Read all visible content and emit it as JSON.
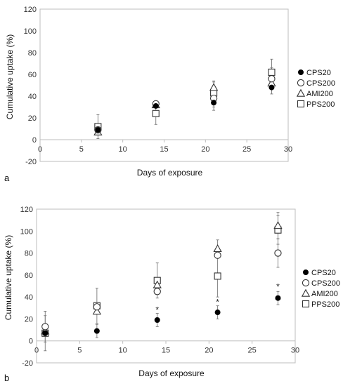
{
  "chart_data": [
    {
      "type": "scatter",
      "panel_label": "a",
      "xlabel": "Days of exposure",
      "ylabel": "Cumulative uptake (%)",
      "xlim": [
        0,
        30
      ],
      "ylim": [
        -20,
        120
      ],
      "xticks": [
        0,
        5,
        10,
        15,
        20,
        25,
        30
      ],
      "yticks": [
        -20,
        0,
        20,
        40,
        60,
        80,
        100,
        120
      ],
      "grid": false,
      "legend_position": "right",
      "series": [
        {
          "name": "CPS20",
          "marker": "filled-circle",
          "points": [
            {
              "x": 7,
              "y": 9,
              "err": 0
            },
            {
              "x": 14,
              "y": 31,
              "err": 0
            },
            {
              "x": 21,
              "y": 34,
              "err": 7
            },
            {
              "x": 28,
              "y": 48,
              "err": 6
            }
          ]
        },
        {
          "name": "CPS200",
          "marker": "open-circle",
          "points": [
            {
              "x": 7,
              "y": 9,
              "err": 0
            },
            {
              "x": 14,
              "y": 33,
              "err": 0
            },
            {
              "x": 21,
              "y": 38,
              "err": 8
            },
            {
              "x": 28,
              "y": 56,
              "err": 10
            }
          ]
        },
        {
          "name": "AMI200",
          "marker": "open-triangle",
          "points": [
            {
              "x": 7,
              "y": 7,
              "err": 0
            },
            {
              "x": 14,
              "y": 32,
              "err": 0
            },
            {
              "x": 21,
              "y": 48,
              "err": 6
            },
            {
              "x": 28,
              "y": 52,
              "err": 0
            }
          ]
        },
        {
          "name": "PPS200",
          "marker": "open-square",
          "points": [
            {
              "x": 7,
              "y": 12,
              "err": 11
            },
            {
              "x": 14,
              "y": 24,
              "err": 10
            },
            {
              "x": 21,
              "y": 43,
              "err": 10
            },
            {
              "x": 28,
              "y": 62,
              "err": 12
            }
          ]
        }
      ],
      "annotations": []
    },
    {
      "type": "scatter",
      "panel_label": "b",
      "xlabel": "Days of exposure",
      "ylabel": "Cumulative uptake (%)",
      "xlim": [
        0,
        30
      ],
      "ylim": [
        -20,
        120
      ],
      "xticks": [
        0,
        5,
        10,
        15,
        20,
        25,
        30
      ],
      "yticks": [
        -20,
        0,
        20,
        40,
        60,
        80,
        100,
        120
      ],
      "grid": false,
      "legend_position": "right",
      "series": [
        {
          "name": "CPS20",
          "marker": "filled-circle",
          "points": [
            {
              "x": 1,
              "y": 7,
              "err": 0
            },
            {
              "x": 7,
              "y": 9,
              "err": 6
            },
            {
              "x": 14,
              "y": 19,
              "err": 6
            },
            {
              "x": 21,
              "y": 26,
              "err": 6
            },
            {
              "x": 28,
              "y": 39,
              "err": 6
            }
          ]
        },
        {
          "name": "CPS200",
          "marker": "open-circle",
          "points": [
            {
              "x": 1,
              "y": 13,
              "err": 14
            },
            {
              "x": 7,
              "y": 31,
              "err": 0
            },
            {
              "x": 14,
              "y": 45,
              "err": 0
            },
            {
              "x": 21,
              "y": 78,
              "err": 0
            },
            {
              "x": 28,
              "y": 80,
              "err": 13
            }
          ]
        },
        {
          "name": "AMI200",
          "marker": "open-triangle",
          "points": [
            {
              "x": 1,
              "y": 9,
              "err": 0
            },
            {
              "x": 7,
              "y": 27,
              "err": 0
            },
            {
              "x": 14,
              "y": 51,
              "err": 0
            },
            {
              "x": 21,
              "y": 84,
              "err": 8
            },
            {
              "x": 28,
              "y": 105,
              "err": 12
            }
          ]
        },
        {
          "name": "PPS200",
          "marker": "open-square",
          "points": [
            {
              "x": 1,
              "y": 7,
              "err": 16
            },
            {
              "x": 7,
              "y": 32,
              "err": 16
            },
            {
              "x": 14,
              "y": 55,
              "err": 16
            },
            {
              "x": 21,
              "y": 59,
              "err": 19
            },
            {
              "x": 28,
              "y": 101,
              "err": 13
            }
          ]
        }
      ],
      "annotations": [
        {
          "x": 14,
          "y": 29,
          "text": "*"
        },
        {
          "x": 21,
          "y": 36,
          "text": "*"
        },
        {
          "x": 28,
          "y": 50,
          "text": "*"
        }
      ]
    }
  ]
}
